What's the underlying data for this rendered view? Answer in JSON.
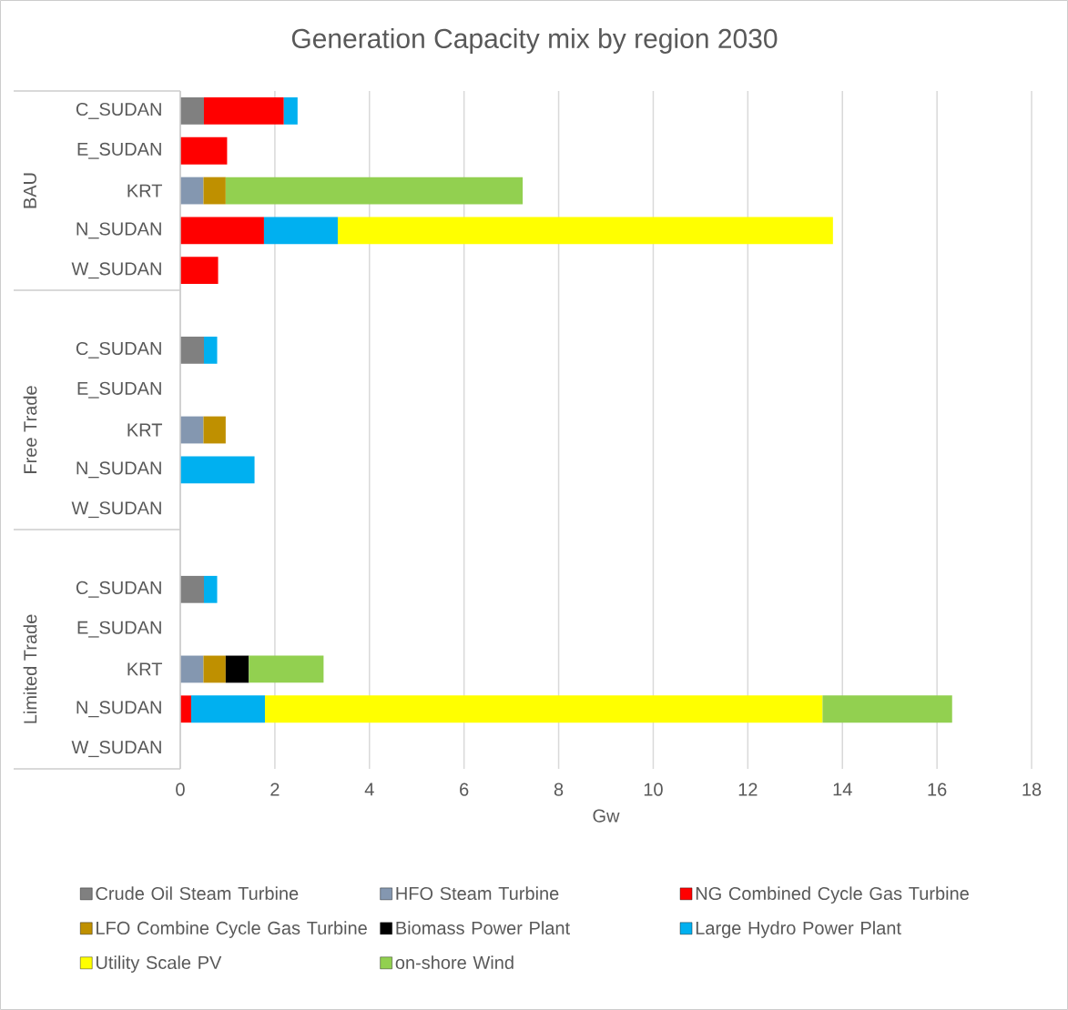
{
  "chart_data": {
    "type": "bar",
    "orientation": "horizontal",
    "stacked": true,
    "title": "Generation Capacity mix by region 2030",
    "xlabel": "Gw",
    "annotations": [
      "BAU",
      "Free Trade",
      "Limited Trade"
    ],
    "categories": [
      "C_SUDAN",
      "E_SUDAN",
      "KRT",
      "N_SUDAN",
      "W_SUDAN",
      null,
      "C_SUDAN",
      "E_SUDAN",
      "KRT",
      "N_SUDAN",
      "W_SUDAN",
      null,
      "C_SUDAN",
      "E_SUDAN",
      "KRT",
      "N_SUDAN",
      "W_SUDAN"
    ],
    "series": [
      {
        "name": "Crude Oil Steam Turbine",
        "color": "#808080",
        "values": [
          0.5,
          null,
          null,
          null,
          null,
          null,
          0.5,
          null,
          null,
          null,
          null,
          null,
          0.5,
          null,
          null,
          null,
          null
        ]
      },
      {
        "name": "HFO Steam Turbine",
        "color": "#8497b0",
        "values": [
          null,
          null,
          0.49,
          null,
          null,
          null,
          null,
          null,
          0.49,
          null,
          null,
          null,
          null,
          null,
          0.49,
          null,
          null
        ]
      },
      {
        "name": "NG Combined Cycle Gas Turbine",
        "color": "#ff0000",
        "values": [
          1.69,
          0.99,
          null,
          1.77,
          0.8,
          null,
          null,
          null,
          null,
          null,
          null,
          null,
          null,
          null,
          null,
          0.23,
          null
        ]
      },
      {
        "name": "LFO Combine Cycle Gas Turbine",
        "color": "#bf9000",
        "values": [
          null,
          null,
          0.47,
          null,
          null,
          null,
          null,
          null,
          0.47,
          null,
          null,
          null,
          null,
          null,
          0.47,
          null,
          null
        ]
      },
      {
        "name": "Biomass Power Plant",
        "color": "#000000",
        "values": [
          null,
          null,
          null,
          null,
          null,
          null,
          null,
          null,
          null,
          null,
          null,
          null,
          null,
          null,
          0.49,
          null,
          null
        ]
      },
      {
        "name": "Large Hydro Power Plant",
        "color": "#00b0f0",
        "values": [
          0.29,
          null,
          null,
          1.56,
          null,
          null,
          0.28,
          null,
          null,
          1.57,
          null,
          null,
          0.28,
          null,
          null,
          1.56,
          null
        ]
      },
      {
        "name": "Utility Scale PV",
        "color": "#ffff00",
        "values": [
          null,
          null,
          null,
          10.47,
          null,
          null,
          null,
          null,
          null,
          null,
          null,
          null,
          null,
          null,
          null,
          11.79,
          null
        ]
      },
      {
        "name": "on-shore Wind",
        "color": "#92d050",
        "values": [
          null,
          null,
          6.28,
          null,
          null,
          null,
          null,
          null,
          null,
          null,
          null,
          null,
          null,
          null,
          1.58,
          2.74,
          null
        ]
      }
    ],
    "xlim": [
      0,
      18
    ],
    "xticks": [
      0,
      2,
      4,
      6,
      8,
      10,
      12,
      14,
      16,
      18
    ],
    "grid": "x",
    "legend": "bottom"
  }
}
